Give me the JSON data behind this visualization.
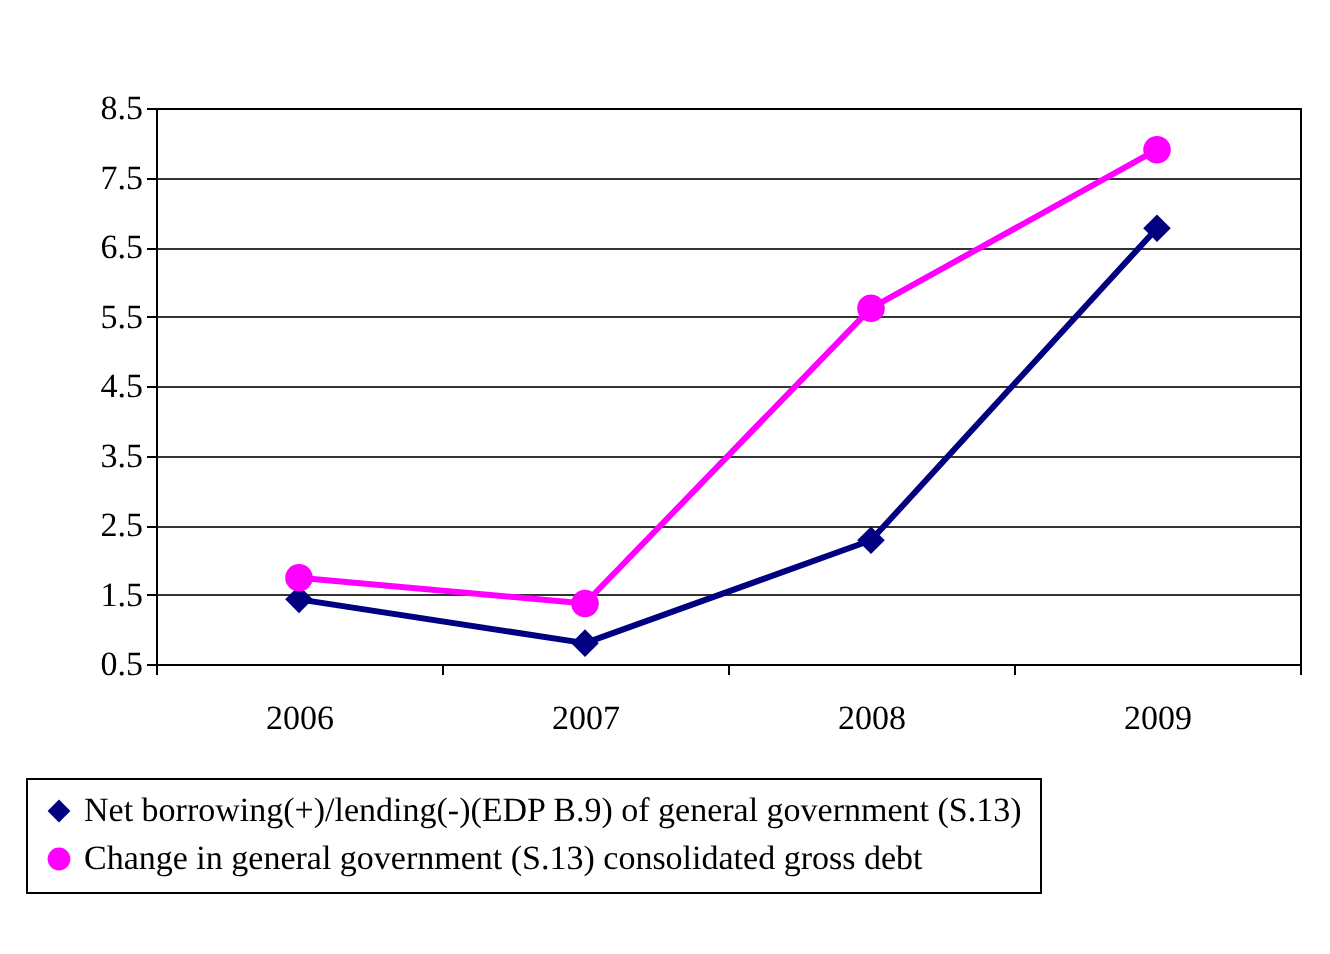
{
  "chart_data": {
    "type": "line",
    "categories": [
      "2006",
      "2007",
      "2008",
      "2009"
    ],
    "series": [
      {
        "name": "Net borrowing(+)/lending(-)(EDP B.9) of general government (S.13)",
        "color": "#000080",
        "marker": "diamond",
        "values": [
          1.43,
          0.8,
          2.28,
          6.77
        ]
      },
      {
        "name": "Change in general government (S.13) consolidated gross debt",
        "color": "#ff00ff",
        "marker": "circle",
        "values": [
          1.74,
          1.37,
          5.62,
          7.9
        ]
      }
    ],
    "ylim": [
      0.5,
      8.5
    ],
    "yticks": [
      0.5,
      1.5,
      2.5,
      3.5,
      4.5,
      5.5,
      6.5,
      7.5,
      8.5
    ],
    "grid": "y",
    "legend": "bottom",
    "line_style": "solid"
  }
}
